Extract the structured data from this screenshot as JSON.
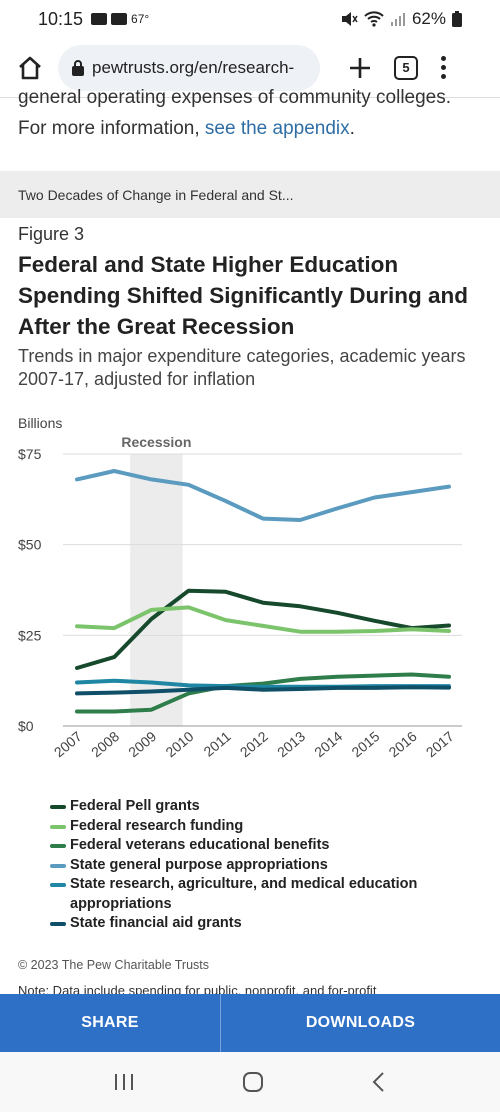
{
  "status": {
    "time": "10:15",
    "temp": "67°",
    "battery": "62%"
  },
  "browser": {
    "url": "pewtrusts.org/en/research-",
    "tab_count": "5"
  },
  "body_text": {
    "line1": "general operating expenses of community colleges.",
    "line2_prefix": "For more information, ",
    "link": "see the appendix",
    "line2_suffix": "."
  },
  "figure_header": "Two Decades of Change in Federal and St...",
  "figure": {
    "label": "Figure 3",
    "title": "Federal and State Higher Education Spending Shifted Significantly During and After the Great Recession",
    "subtitle": "Trends in major expenditure categories, academic years 2007-17, adjusted for inflation"
  },
  "chart_data": {
    "type": "line",
    "ylabel": "Billions",
    "ylim": [
      0,
      75
    ],
    "yticks": [
      "$0",
      "$25",
      "$50",
      "$75"
    ],
    "ytick_values": [
      0,
      25,
      50,
      75
    ],
    "x": [
      "2007",
      "2008",
      "2009",
      "2010",
      "2011",
      "2012",
      "2013",
      "2014",
      "2015",
      "2016",
      "2017"
    ],
    "annotation": {
      "label": "Recession",
      "x_start": "2008",
      "x_end": "2010"
    },
    "series": [
      {
        "name": "State general purpose appropriations",
        "color": "#5b9bbf",
        "values": [
          68,
          70.3,
          68,
          66.5,
          62,
          57.2,
          56.8,
          60,
          63,
          64.5,
          66
        ]
      },
      {
        "name": "Federal Pell grants",
        "color": "#174a2c",
        "values": [
          16,
          19,
          29.5,
          37.3,
          37,
          34,
          33,
          31.2,
          29,
          27,
          27.7
        ]
      },
      {
        "name": "Federal research funding",
        "color": "#7cc46b",
        "values": [
          27.5,
          27,
          32,
          32.7,
          29.2,
          27.6,
          26,
          26,
          26.2,
          26.7,
          26.2
        ]
      },
      {
        "name": "Federal veterans educational benefits",
        "color": "#2f7d4a",
        "values": [
          4,
          4,
          4.5,
          9,
          11,
          11.7,
          13,
          13.6,
          13.9,
          14.2,
          13.6
        ]
      },
      {
        "name": "State research, agriculture, and medical education appropriations",
        "color": "#1f86a3",
        "values": [
          12,
          12.5,
          12,
          11.2,
          11,
          10.8,
          10.8,
          10.8,
          11,
          11,
          11
        ]
      },
      {
        "name": "State financial aid grants",
        "color": "#0f4f67",
        "values": [
          9,
          9.2,
          9.5,
          10,
          10.5,
          10,
          10.2,
          10.5,
          10.5,
          10.7,
          10.6
        ]
      }
    ]
  },
  "legend": [
    {
      "label": "Federal Pell grants",
      "color": "#174a2c"
    },
    {
      "label": "Federal research funding",
      "color": "#7cc46b"
    },
    {
      "label": "Federal veterans educational benefits",
      "color": "#2f7d4a"
    },
    {
      "label": "State general purpose appropriations",
      "color": "#5b9bbf"
    },
    {
      "label": "State research, agriculture, and medical education appropriations",
      "color": "#1f86a3"
    },
    {
      "label": "State financial aid grants",
      "color": "#0f4f67"
    }
  ],
  "copyright": "© 2023 The Pew Charitable Trusts",
  "note": "Note: Data include spending for public, nonprofit, and for-profit",
  "actions": {
    "share": "SHARE",
    "downloads": "DOWNLOADS"
  }
}
